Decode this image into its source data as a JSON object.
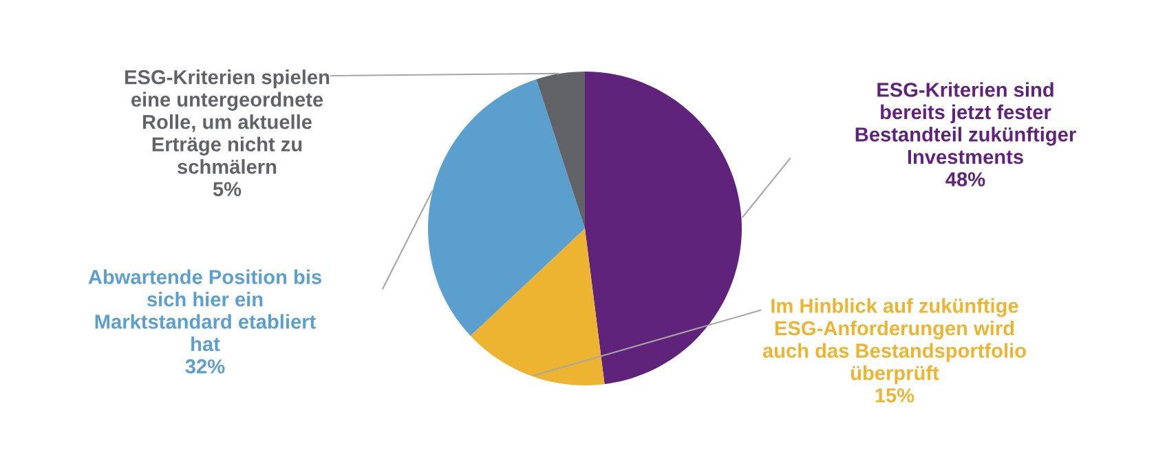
{
  "chart_data": {
    "type": "pie",
    "categories": [
      "ESG-Kriterien sind\nbereits jetzt fester\nBestandteil zukünftiger\nInvestments",
      "Im Hinblick auf zukünftige\nESG-Anforderungen wird\nauch das Bestandsportfolio\nüberprüft",
      "Abwartende Position bis\nsich hier ein\nMarktstandard etabliert\nhat",
      "ESG-Kriterien spielen\neine untergeordnete\nRolle, um aktuelle\nErträge nicht zu\nschmälern"
    ],
    "values": [
      48,
      15,
      32,
      5
    ],
    "value_labels": [
      "48%",
      "15%",
      "32%",
      "5%"
    ],
    "colors": [
      "#5f237c",
      "#ecb431",
      "#5b9fcf",
      "#626366"
    ]
  }
}
